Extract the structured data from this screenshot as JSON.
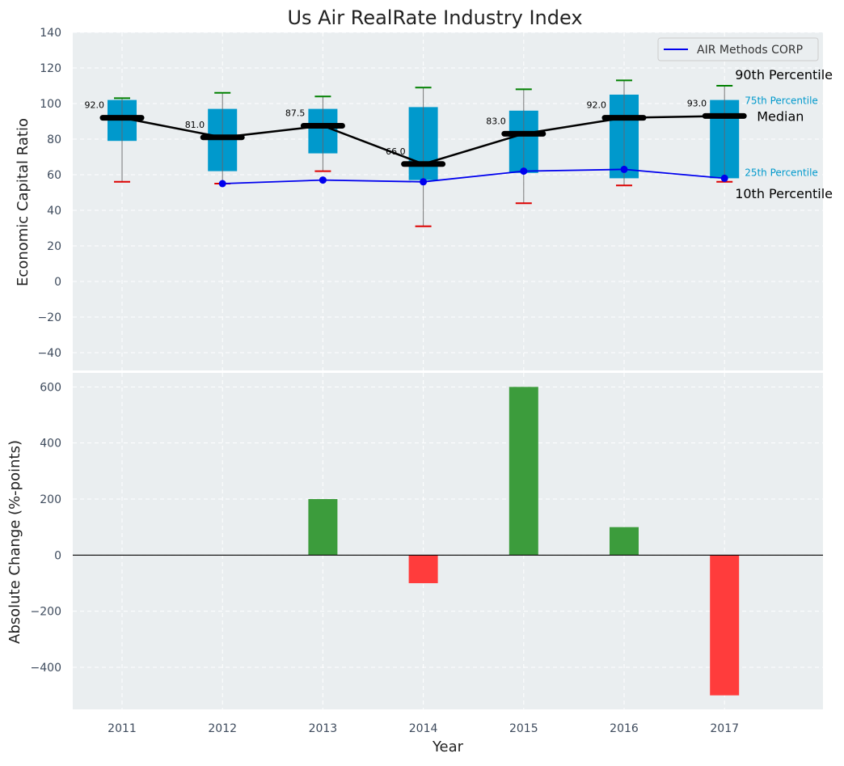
{
  "chart_data": [
    {
      "type": "box",
      "title": "Us Air RealRate Industry Index",
      "xlabel": "",
      "ylabel": "Economic Capital Ratio",
      "ylim": [
        -50,
        140
      ],
      "yticks": [
        140,
        120,
        100,
        80,
        60,
        40,
        20,
        0,
        -20,
        -40
      ],
      "ytick_labels": [
        "140",
        "120",
        "100",
        "80",
        "60",
        "40",
        "20",
        "0",
        "−20",
        "−40"
      ],
      "grid": true,
      "legend_placement": "top-right",
      "categories": [
        2011,
        2012,
        2013,
        2014,
        2015,
        2016,
        2017
      ],
      "p10": [
        56,
        55,
        62,
        31,
        44,
        54,
        56
      ],
      "p25": [
        79,
        62,
        72,
        57,
        61,
        58,
        58
      ],
      "median": [
        92.0,
        81.0,
        87.5,
        66.0,
        83.0,
        92.0,
        93.0
      ],
      "median_labels": [
        "92.0",
        "81.0",
        "87.5",
        "66.0",
        "83.0",
        "92.0",
        "93.0"
      ],
      "p75": [
        102,
        97,
        97,
        98,
        96,
        105,
        102
      ],
      "p90": [
        103,
        106,
        104,
        109,
        108,
        113,
        110
      ],
      "series": [
        {
          "name": "AIR Methods CORP",
          "color": "#0000ee",
          "values": [
            null,
            55,
            57,
            56,
            62,
            63,
            58
          ]
        }
      ],
      "annotations": {
        "p90": "90th Percentile",
        "p75": "75th Percentile",
        "median": "Median",
        "p25": "25th Percentile",
        "p10": "10th Percentile"
      },
      "colors": {
        "box": "#0099cc",
        "median_line": "#000000",
        "whisker_high": "#008000",
        "whisker_low": "#dd0000",
        "background": "#eaeef0",
        "percentile_text": "#0099cc"
      }
    },
    {
      "type": "bar",
      "title": "",
      "xlabel": "Year",
      "ylabel": "Absolute Change (%-points)",
      "ylim": [
        -550,
        650
      ],
      "yticks": [
        600,
        400,
        200,
        0,
        -200,
        -400
      ],
      "ytick_labels": [
        "600",
        "400",
        "200",
        "0",
        "−200",
        "−400"
      ],
      "grid": true,
      "categories": [
        "2011",
        "2012",
        "2013",
        "2014",
        "2015",
        "2016",
        "2017"
      ],
      "values": [
        0,
        0,
        200,
        -100,
        600,
        100,
        -500
      ],
      "colors": {
        "positive": "#3c9c3c",
        "negative": "#ff3c3c",
        "background": "#eaeef0"
      }
    }
  ]
}
